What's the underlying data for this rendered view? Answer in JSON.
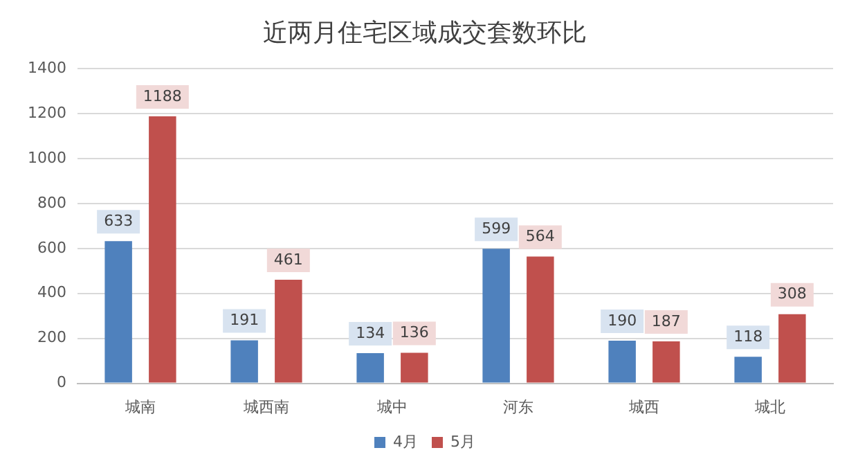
{
  "chart_data": {
    "type": "bar",
    "title": "近两月住宅区域成交套数环比",
    "categories": [
      "城南",
      "城西南",
      "城中",
      "河东",
      "城西",
      "城北"
    ],
    "series": [
      {
        "name": "4月",
        "color": "#4f81bd",
        "values": [
          633,
          191,
          134,
          599,
          190,
          118
        ]
      },
      {
        "name": "5月",
        "color": "#c0504d",
        "values": [
          1188,
          461,
          136,
          564,
          187,
          308
        ]
      }
    ],
    "ylim": [
      0,
      1400
    ],
    "yticks": [
      0,
      200,
      400,
      600,
      800,
      1000,
      1200,
      1400
    ],
    "grid": "y",
    "legend": "bottom",
    "data_labels": true
  }
}
